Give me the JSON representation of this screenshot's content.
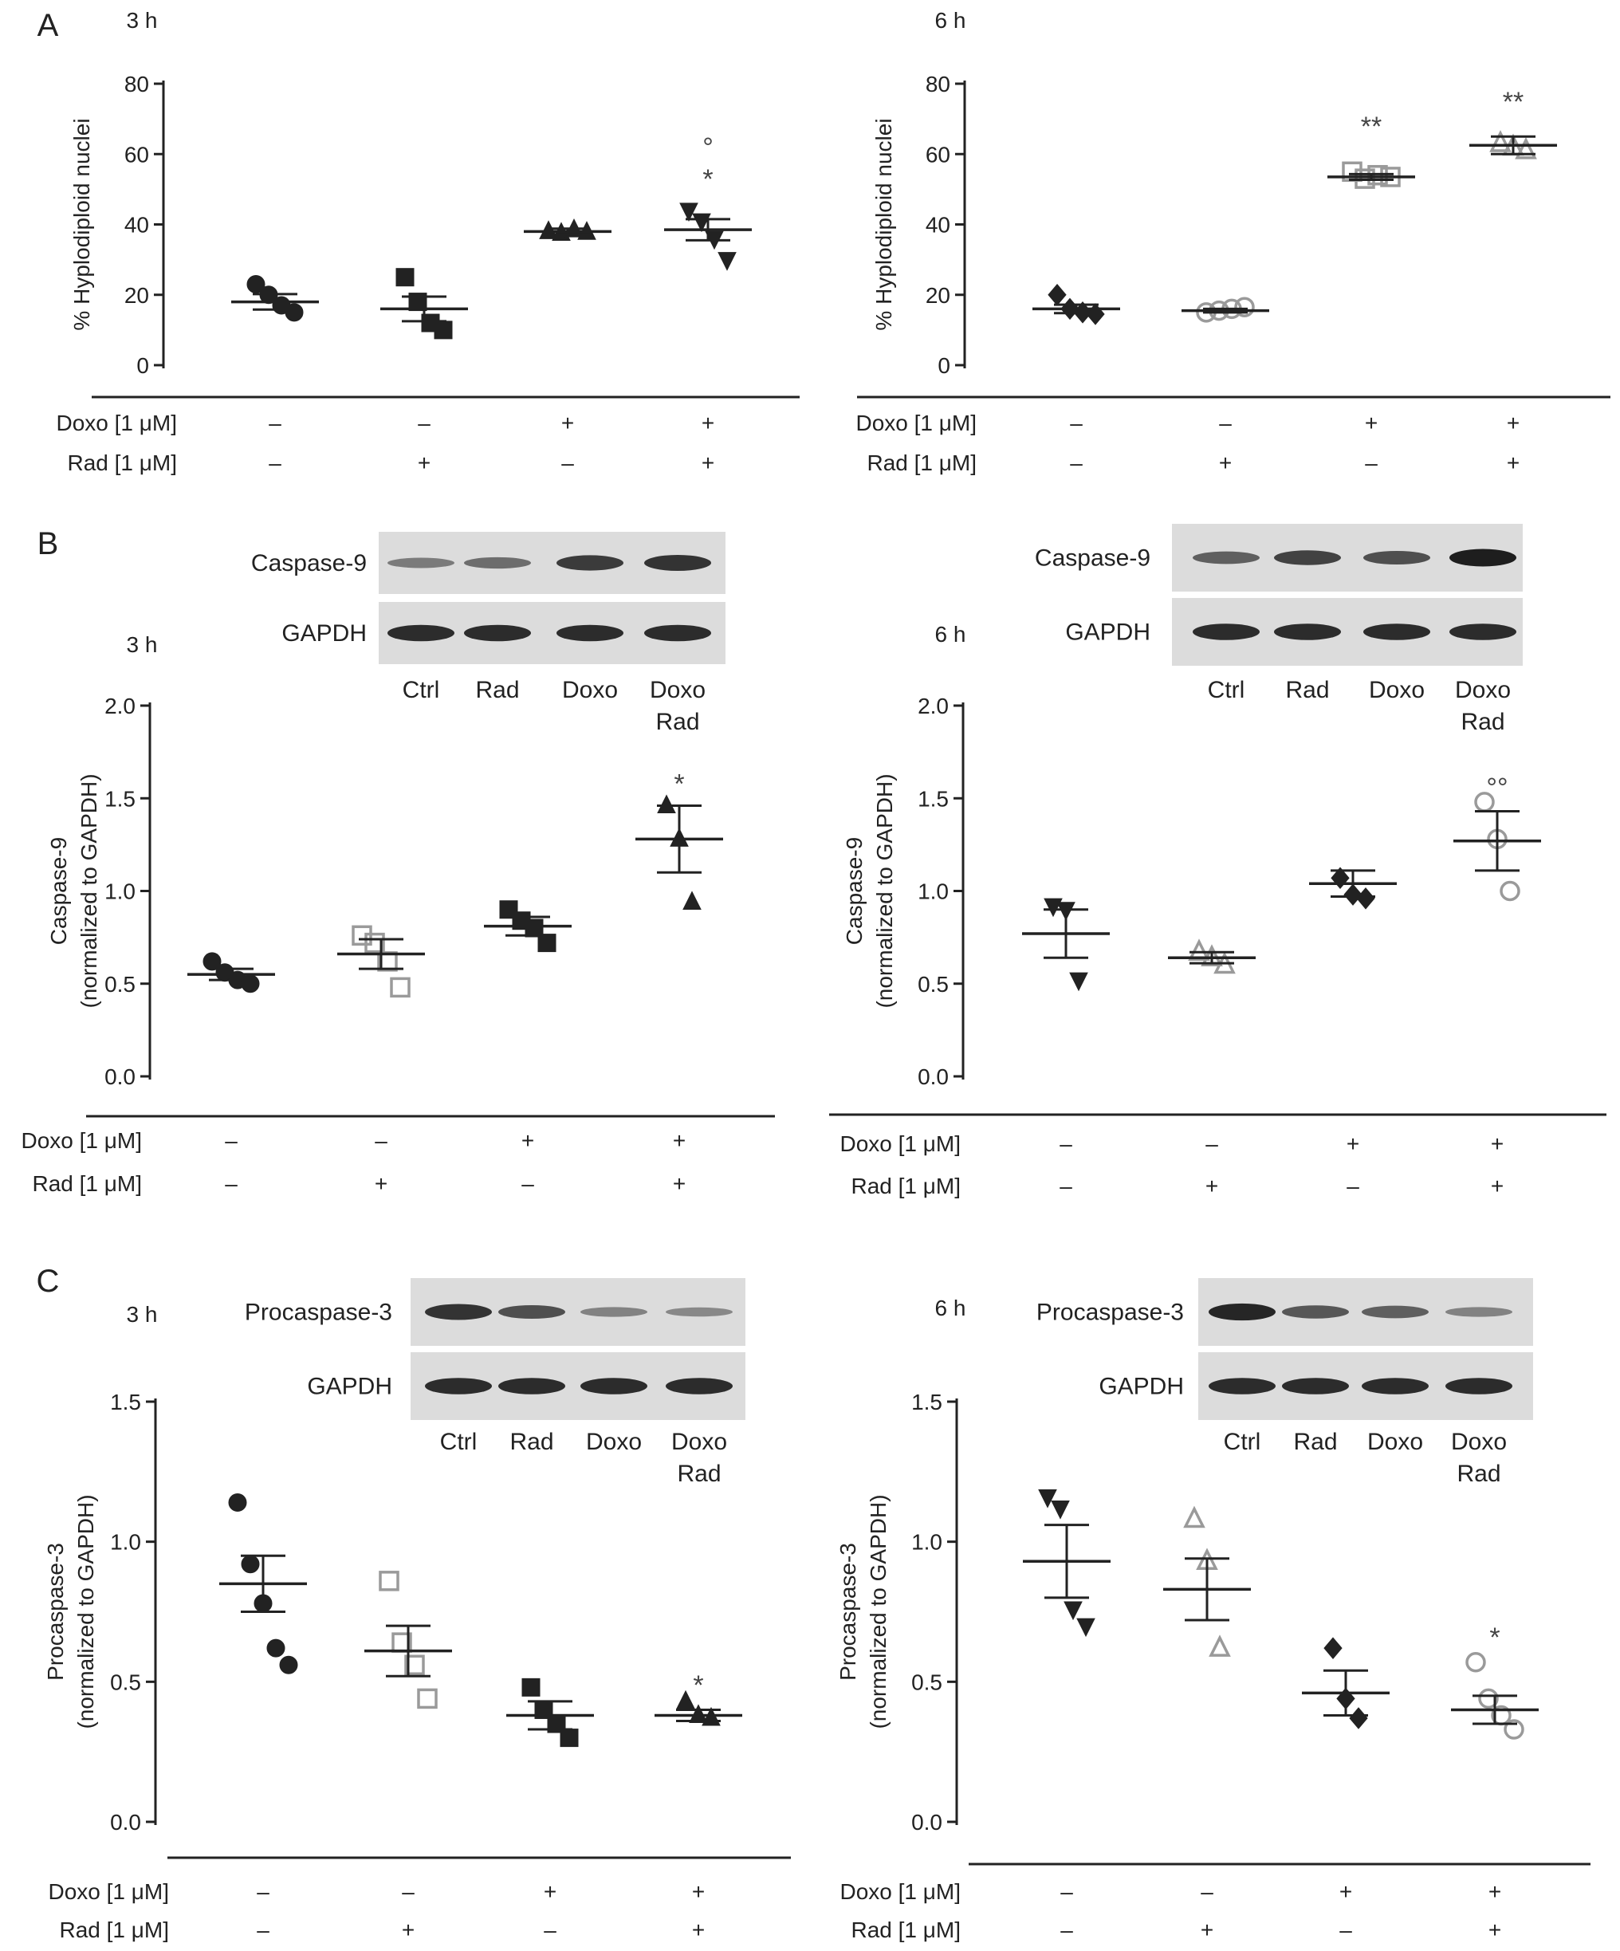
{
  "figure": {
    "panel_letters": [
      "A",
      "B",
      "C"
    ]
  },
  "treatment_labels": {
    "doxo": "Doxo [1 μM]",
    "rad": "Rad [1 μM]"
  },
  "blot_lanes": [
    "Ctrl",
    "Rad",
    "Doxo",
    "Doxo\nRad"
  ],
  "colors": {
    "ink": "#222222",
    "open_marker": "#9a9a9a",
    "blot_band": "#1e1e1e",
    "blot_bg": "#dcdcdc"
  },
  "chart_data": [
    {
      "type": "scatter",
      "panel": "A",
      "timepoint": "3 h",
      "ylabel": "% Hyplodiploid nuclei",
      "ylim": [
        0,
        80
      ],
      "yticks": [
        "0",
        "20",
        "40",
        "60",
        "80"
      ],
      "categories": [
        "Ctrl",
        "Rad",
        "Doxo",
        "Doxo+Rad"
      ],
      "doxo": [
        "–",
        "–",
        "+",
        "+"
      ],
      "rad": [
        "–",
        "+",
        "–",
        "+"
      ],
      "groups": [
        {
          "mean": 18,
          "sem": 2.2,
          "marker": "circle-filled",
          "points": [
            23,
            20,
            17,
            15
          ]
        },
        {
          "mean": 16,
          "sem": 3.5,
          "marker": "square-filled",
          "points": [
            25,
            18,
            12,
            10
          ]
        },
        {
          "mean": 38,
          "sem": 0.8,
          "marker": "triangle-up-filled",
          "points": [
            38,
            37.5,
            38.5,
            37.8
          ]
        },
        {
          "mean": 38.5,
          "sem": 3,
          "marker": "triangle-down-filled",
          "points": [
            44,
            41,
            36,
            30
          ]
        }
      ],
      "annotations": [
        {
          "group": 3,
          "text": "°",
          "y": 62
        },
        {
          "group": 3,
          "text": "*",
          "y": 53
        }
      ]
    },
    {
      "type": "scatter",
      "panel": "A",
      "timepoint": "6 h",
      "ylabel": "% Hyplodiploid nuclei",
      "ylim": [
        0,
        80
      ],
      "yticks": [
        "0",
        "20",
        "40",
        "60",
        "80"
      ],
      "categories": [
        "Ctrl",
        "Rad",
        "Doxo",
        "Doxo+Rad"
      ],
      "doxo": [
        "–",
        "–",
        "+",
        "+"
      ],
      "rad": [
        "–",
        "+",
        "–",
        "+"
      ],
      "groups": [
        {
          "mean": 16,
          "sem": 1.2,
          "marker": "diamond-filled",
          "points": [
            20,
            16,
            15,
            14.5
          ]
        },
        {
          "mean": 15.5,
          "sem": 0.5,
          "marker": "circle-open",
          "points": [
            15,
            15.5,
            16,
            16.5
          ]
        },
        {
          "mean": 53.5,
          "sem": 0.8,
          "marker": "square-open",
          "points": [
            55,
            53,
            54,
            53.5
          ]
        },
        {
          "mean": 62.5,
          "sem": 2.5,
          "marker": "triangle-up-open",
          "points": [
            63,
            62,
            61
          ]
        }
      ],
      "annotations": [
        {
          "group": 2,
          "text": "**",
          "y": 68
        },
        {
          "group": 3,
          "text": "**",
          "y": 75
        }
      ]
    },
    {
      "type": "scatter",
      "panel": "B",
      "timepoint": "3 h",
      "ylabel": "Caspase-9\n(normalized to GAPDH)",
      "ylim": [
        0,
        2
      ],
      "yticks": [
        "0.0",
        "0.5",
        "1.0",
        "1.5",
        "2.0"
      ],
      "categories": [
        "Ctrl",
        "Rad",
        "Doxo",
        "Doxo+Rad"
      ],
      "doxo": [
        "–",
        "–",
        "+",
        "+"
      ],
      "rad": [
        "–",
        "+",
        "–",
        "+"
      ],
      "groups": [
        {
          "mean": 0.55,
          "sem": 0.03,
          "marker": "circle-filled",
          "points": [
            0.62,
            0.56,
            0.52,
            0.5
          ]
        },
        {
          "mean": 0.66,
          "sem": 0.08,
          "marker": "square-open",
          "points": [
            0.76,
            0.72,
            0.62,
            0.48
          ]
        },
        {
          "mean": 0.81,
          "sem": 0.05,
          "marker": "square-filled",
          "points": [
            0.9,
            0.84,
            0.8,
            0.72
          ]
        },
        {
          "mean": 1.28,
          "sem": 0.18,
          "marker": "triangle-up-filled",
          "points": [
            1.46,
            1.28,
            0.94
          ]
        }
      ],
      "annotations": [
        {
          "group": 3,
          "text": "*",
          "y": 1.58
        }
      ],
      "blot": {
        "labels": [
          "Caspase-9",
          "GAPDH"
        ],
        "bands": [
          [
            0.35,
            0.45,
            0.8,
            0.85
          ],
          [
            0.9,
            0.9,
            0.9,
            0.9
          ]
        ]
      }
    },
    {
      "type": "scatter",
      "panel": "B",
      "timepoint": "6 h",
      "ylabel": "Caspase-9\n(normalized to GAPDH)",
      "ylim": [
        0,
        2
      ],
      "yticks": [
        "0.0",
        "0.5",
        "1.0",
        "1.5",
        "2.0"
      ],
      "categories": [
        "Ctrl",
        "Rad",
        "Doxo",
        "Doxo+Rad"
      ],
      "doxo": [
        "–",
        "–",
        "+",
        "+"
      ],
      "rad": [
        "–",
        "+",
        "–",
        "+"
      ],
      "groups": [
        {
          "mean": 0.77,
          "sem": 0.13,
          "marker": "triangle-down-filled",
          "points": [
            0.92,
            0.9,
            0.52
          ]
        },
        {
          "mean": 0.64,
          "sem": 0.03,
          "marker": "triangle-up-open",
          "points": [
            0.67,
            0.64,
            0.6
          ]
        },
        {
          "mean": 1.04,
          "sem": 0.07,
          "marker": "diamond-filled",
          "points": [
            1.07,
            0.98,
            0.96
          ]
        },
        {
          "mean": 1.27,
          "sem": 0.16,
          "marker": "circle-open",
          "points": [
            1.48,
            1.28,
            1.0
          ]
        }
      ],
      "annotations": [
        {
          "group": 3,
          "text": "°°",
          "y": 1.56
        }
      ],
      "blot": {
        "labels": [
          "Caspase-9",
          "GAPDH"
        ],
        "bands": [
          [
            0.55,
            0.75,
            0.65,
            1.0
          ],
          [
            0.9,
            0.9,
            0.9,
            0.9
          ]
        ]
      }
    },
    {
      "type": "scatter",
      "panel": "C",
      "timepoint": "3 h",
      "ylabel": "Procaspase-3\n(normalized to GAPDH)",
      "ylim": [
        0,
        1.5
      ],
      "yticks": [
        "0.0",
        "0.5",
        "1.0",
        "1.5"
      ],
      "categories": [
        "Ctrl",
        "Rad",
        "Doxo",
        "Doxo+Rad"
      ],
      "doxo": [
        "–",
        "–",
        "+",
        "+"
      ],
      "rad": [
        "–",
        "+",
        "–",
        "+"
      ],
      "groups": [
        {
          "mean": 0.85,
          "sem": 0.1,
          "marker": "circle-filled",
          "points": [
            1.14,
            0.92,
            0.78,
            0.62,
            0.56
          ]
        },
        {
          "mean": 0.61,
          "sem": 0.09,
          "marker": "square-open",
          "points": [
            0.86,
            0.64,
            0.56,
            0.44
          ]
        },
        {
          "mean": 0.38,
          "sem": 0.05,
          "marker": "square-filled",
          "points": [
            0.48,
            0.4,
            0.35,
            0.3
          ]
        },
        {
          "mean": 0.38,
          "sem": 0.02,
          "marker": "triangle-up-filled",
          "points": [
            0.43,
            0.38,
            0.37
          ]
        }
      ],
      "annotations": [
        {
          "group": 3,
          "text": "*",
          "y": 0.49
        }
      ],
      "blot": {
        "labels": [
          "Procaspase-3",
          "GAPDH"
        ],
        "bands": [
          [
            0.85,
            0.65,
            0.3,
            0.25
          ],
          [
            0.9,
            0.9,
            0.9,
            0.9
          ]
        ]
      }
    },
    {
      "type": "scatter",
      "panel": "C",
      "timepoint": "6 h",
      "ylabel": "Procaspase-3\n(normalized to GAPDH)",
      "ylim": [
        0,
        1.5
      ],
      "yticks": [
        "0.0",
        "0.5",
        "1.0",
        "1.5"
      ],
      "categories": [
        "Ctrl",
        "Rad",
        "Doxo",
        "Doxo+Rad"
      ],
      "doxo": [
        "–",
        "–",
        "+",
        "+"
      ],
      "rad": [
        "–",
        "+",
        "–",
        "+"
      ],
      "groups": [
        {
          "mean": 0.93,
          "sem": 0.13,
          "marker": "triangle-down-filled",
          "points": [
            1.16,
            1.12,
            0.76,
            0.7
          ]
        },
        {
          "mean": 0.83,
          "sem": 0.11,
          "marker": "triangle-up-open",
          "points": [
            1.08,
            0.93,
            0.62
          ]
        },
        {
          "mean": 0.46,
          "sem": 0.08,
          "marker": "diamond-filled",
          "points": [
            0.62,
            0.44,
            0.37
          ]
        },
        {
          "mean": 0.4,
          "sem": 0.05,
          "marker": "circle-open",
          "points": [
            0.57,
            0.44,
            0.38,
            0.33
          ]
        }
      ],
      "annotations": [
        {
          "group": 3,
          "text": "*",
          "y": 0.66
        }
      ],
      "blot": {
        "labels": [
          "Procaspase-3",
          "GAPDH"
        ],
        "bands": [
          [
            0.95,
            0.6,
            0.55,
            0.3
          ],
          [
            0.9,
            0.9,
            0.9,
            0.9
          ]
        ]
      }
    }
  ]
}
